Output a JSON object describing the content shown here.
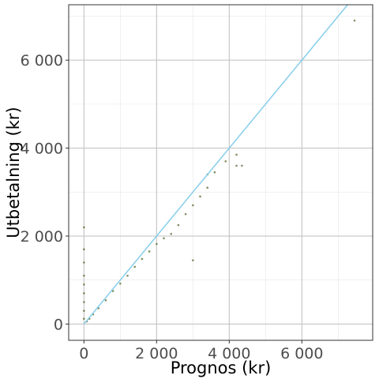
{
  "chart_data": {
    "type": "scatter",
    "title": "",
    "xlabel": "Prognos (kr)",
    "ylabel": "Utbetalning (kr)",
    "xlim": [
      -420,
      7950
    ],
    "ylim": [
      -370,
      7260
    ],
    "x_ticks": [
      0,
      2000,
      4000,
      6000
    ],
    "x_tick_labels": [
      "0",
      "2 000",
      "4 000",
      "6 000"
    ],
    "y_ticks": [
      0,
      2000,
      4000,
      6000
    ],
    "y_tick_labels": [
      "0",
      "2 000",
      "4 000",
      "6 000"
    ],
    "grid": true,
    "legend": "none",
    "colors": {
      "points": "#556b2f",
      "reference_line": "#87ceeb",
      "grid_major": "#bebebe",
      "grid_minor": "#e6e6e6",
      "panel_border": "#333333"
    },
    "reference_line": {
      "type": "identity",
      "slope": 1,
      "intercept": 0
    },
    "series": [
      {
        "values": [
          [
            3000,
            1450
          ],
          [
            4200,
            3850
          ],
          [
            4200,
            3600
          ],
          [
            4350,
            3600
          ],
          [
            3900,
            3700
          ],
          [
            3600,
            3450
          ],
          [
            3400,
            3400
          ],
          [
            7450,
            6900
          ],
          [
            0,
            2200
          ],
          [
            0,
            1700
          ],
          [
            0,
            1400
          ],
          [
            0,
            1100
          ],
          [
            0,
            900
          ],
          [
            0,
            700
          ],
          [
            0,
            500
          ],
          [
            0,
            300
          ],
          [
            0,
            120
          ],
          [
            80,
            60
          ],
          [
            150,
            120
          ],
          [
            250,
            220
          ],
          [
            400,
            360
          ],
          [
            600,
            540
          ],
          [
            800,
            750
          ],
          [
            1000,
            920
          ],
          [
            1200,
            1100
          ],
          [
            1400,
            1300
          ],
          [
            1600,
            1480
          ],
          [
            1800,
            1650
          ],
          [
            2000,
            1820
          ],
          [
            2200,
            1950
          ],
          [
            2400,
            2050
          ],
          [
            2600,
            2250
          ],
          [
            2800,
            2500
          ],
          [
            3000,
            2700
          ],
          [
            3200,
            2900
          ],
          [
            3400,
            3100
          ]
        ]
      }
    ]
  }
}
